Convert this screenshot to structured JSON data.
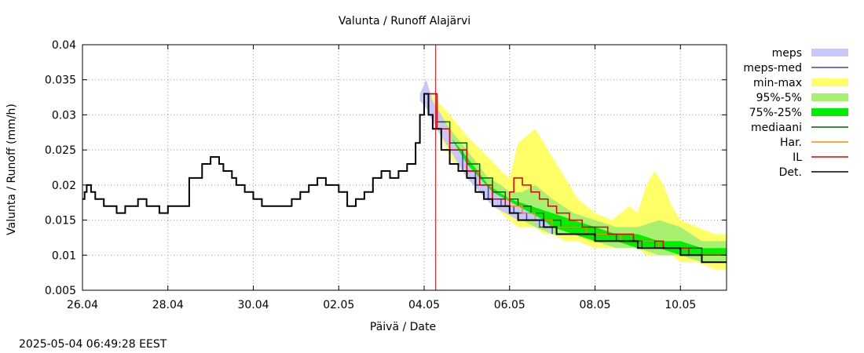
{
  "chart_data": {
    "type": "line",
    "title": "Valunta / Runoff  Alajärvi",
    "xlabel": "Päivä / Date",
    "ylabel": "Valunta / Runoff (mm/h)",
    "timestamp": "2025-05-04 06:49:28 EEST",
    "x_unit": "days since 26.04",
    "xlim": [
      0,
      15.08
    ],
    "ylim": [
      0.005,
      0.04
    ],
    "grid": true,
    "legend_position": "top-right outside",
    "x_ticks": [
      {
        "value": 0,
        "label": "26.04"
      },
      {
        "value": 2,
        "label": "28.04"
      },
      {
        "value": 4,
        "label": "30.04"
      },
      {
        "value": 6,
        "label": "02.05"
      },
      {
        "value": 8,
        "label": "04.05"
      },
      {
        "value": 10,
        "label": "06.05"
      },
      {
        "value": 12,
        "label": "08.05"
      },
      {
        "value": 14,
        "label": "10.05"
      }
    ],
    "y_ticks": [
      {
        "value": 0.005,
        "label": "0.005"
      },
      {
        "value": 0.01,
        "label": "0.01"
      },
      {
        "value": 0.015,
        "label": "0.015"
      },
      {
        "value": 0.02,
        "label": "0.02"
      },
      {
        "value": 0.025,
        "label": "0.025"
      },
      {
        "value": 0.03,
        "label": "0.03"
      },
      {
        "value": 0.035,
        "label": "0.035"
      },
      {
        "value": 0.04,
        "label": "0.04"
      }
    ],
    "forecast_start": 8.27,
    "legend": [
      {
        "label": "meps",
        "kind": "band",
        "color": "#c8c8f8"
      },
      {
        "label": "meps-med",
        "kind": "line",
        "color": "#4040c0"
      },
      {
        "label": "min-max",
        "kind": "band",
        "color": "#ffff66"
      },
      {
        "label": "95%-5%",
        "kind": "band",
        "color": "#a8f070"
      },
      {
        "label": "75%-25%",
        "kind": "band",
        "color": "#00ee00"
      },
      {
        "label": "mediaani",
        "kind": "line",
        "color": "#006400"
      },
      {
        "label": "Har.",
        "kind": "line",
        "color": "#ff8c00"
      },
      {
        "label": "IL",
        "kind": "line",
        "color": "#dd0000"
      },
      {
        "label": "Det.",
        "kind": "line",
        "color": "#000000"
      }
    ],
    "series": [
      {
        "name": "min-max",
        "kind": "band",
        "color": "#ffff66",
        "x": [
          8.0,
          8.3,
          8.6,
          9.0,
          9.5,
          9.8,
          10.0,
          10.2,
          10.4,
          10.6,
          10.8,
          11.0,
          11.3,
          11.6,
          12.0,
          12.4,
          12.8,
          13.0,
          13.2,
          13.4,
          13.6,
          13.8,
          14.0,
          14.4,
          14.8,
          15.08
        ],
        "lower": [
          0.033,
          0.028,
          0.024,
          0.021,
          0.018,
          0.016,
          0.015,
          0.014,
          0.014,
          0.014,
          0.013,
          0.013,
          0.012,
          0.012,
          0.011,
          0.011,
          0.011,
          0.011,
          0.01,
          0.01,
          0.01,
          0.01,
          0.009,
          0.009,
          0.008,
          0.008
        ],
        "upper": [
          0.034,
          0.032,
          0.03,
          0.027,
          0.024,
          0.022,
          0.021,
          0.026,
          0.027,
          0.028,
          0.026,
          0.024,
          0.021,
          0.018,
          0.016,
          0.015,
          0.017,
          0.016,
          0.02,
          0.022,
          0.02,
          0.017,
          0.015,
          0.014,
          0.013,
          0.013
        ]
      },
      {
        "name": "95%-5%",
        "kind": "band",
        "color": "#a8f070",
        "x": [
          8.0,
          8.3,
          8.6,
          9.0,
          9.5,
          9.8,
          10.0,
          10.3,
          10.6,
          11.0,
          11.5,
          12.0,
          12.5,
          13.0,
          13.5,
          14.0,
          14.5,
          15.08
        ],
        "lower": [
          0.033,
          0.028,
          0.025,
          0.022,
          0.018,
          0.017,
          0.016,
          0.015,
          0.014,
          0.013,
          0.013,
          0.012,
          0.011,
          0.011,
          0.01,
          0.01,
          0.009,
          0.009
        ],
        "upper": [
          0.033,
          0.031,
          0.028,
          0.025,
          0.021,
          0.02,
          0.019,
          0.019,
          0.02,
          0.018,
          0.016,
          0.015,
          0.014,
          0.014,
          0.015,
          0.014,
          0.012,
          0.012
        ]
      },
      {
        "name": "75%-25%",
        "kind": "band",
        "color": "#00ee00",
        "x": [
          8.0,
          8.3,
          8.6,
          9.0,
          9.5,
          10.0,
          10.5,
          11.0,
          11.5,
          12.0,
          12.5,
          13.0,
          13.5,
          14.0,
          14.5,
          15.08
        ],
        "lower": [
          0.033,
          0.029,
          0.026,
          0.023,
          0.019,
          0.017,
          0.015,
          0.014,
          0.013,
          0.012,
          0.012,
          0.011,
          0.011,
          0.01,
          0.01,
          0.01
        ],
        "upper": [
          0.033,
          0.03,
          0.027,
          0.024,
          0.02,
          0.018,
          0.017,
          0.016,
          0.015,
          0.014,
          0.013,
          0.013,
          0.012,
          0.012,
          0.011,
          0.011
        ]
      },
      {
        "name": "meps",
        "kind": "band",
        "color": "#c8c8f8",
        "x": [
          7.9,
          8.05,
          8.2,
          8.4,
          8.7,
          9.0,
          9.3,
          9.6,
          9.9,
          10.2,
          10.5,
          10.8,
          11.0
        ],
        "lower": [
          0.032,
          0.031,
          0.029,
          0.027,
          0.024,
          0.021,
          0.019,
          0.017,
          0.016,
          0.015,
          0.015,
          0.014,
          0.013
        ],
        "upper": [
          0.033,
          0.035,
          0.032,
          0.03,
          0.026,
          0.023,
          0.021,
          0.019,
          0.018,
          0.017,
          0.016,
          0.015,
          0.014
        ]
      },
      {
        "name": "meps-med",
        "kind": "line",
        "color": "#4040c0",
        "step": true,
        "x": [
          8.0,
          8.3,
          8.6,
          8.9,
          9.2,
          9.5,
          9.8,
          10.1,
          10.4,
          10.7,
          11.0
        ],
        "y": [
          0.033,
          0.028,
          0.025,
          0.022,
          0.02,
          0.018,
          0.017,
          0.016,
          0.015,
          0.014,
          0.013
        ]
      },
      {
        "name": "mediaani",
        "kind": "line",
        "color": "#006400",
        "step": true,
        "x": [
          8.0,
          8.3,
          8.6,
          9.0,
          9.3,
          9.6,
          9.9,
          10.2,
          10.5,
          10.8,
          11.2,
          11.6,
          12.0,
          12.5,
          13.0,
          13.5,
          14.0,
          14.5,
          15.08
        ],
        "y": [
          0.033,
          0.029,
          0.026,
          0.023,
          0.021,
          0.019,
          0.018,
          0.017,
          0.016,
          0.015,
          0.014,
          0.014,
          0.013,
          0.012,
          0.012,
          0.011,
          0.011,
          0.01,
          0.01
        ]
      },
      {
        "name": "Har.",
        "kind": "line",
        "color": "#ff8c00",
        "step": true,
        "x": [
          8.0,
          8.3,
          8.6,
          9.0,
          9.3,
          9.6,
          10.0,
          10.3,
          10.6,
          11.0,
          11.4,
          11.8,
          12.2,
          12.6,
          13.0,
          13.5,
          14.0,
          14.5,
          15.08
        ],
        "y": [
          0.033,
          0.028,
          0.025,
          0.022,
          0.02,
          0.018,
          0.017,
          0.016,
          0.015,
          0.014,
          0.014,
          0.013,
          0.013,
          0.012,
          0.012,
          0.011,
          0.01,
          0.01,
          0.01
        ]
      },
      {
        "name": "IL",
        "kind": "line",
        "color": "#dd0000",
        "step": true,
        "x": [
          8.0,
          8.3,
          8.6,
          9.0,
          9.3,
          9.6,
          9.9,
          10.0,
          10.1,
          10.3,
          10.5,
          10.7,
          10.9,
          11.1,
          11.4,
          11.7,
          12.0,
          12.3,
          12.6,
          12.9,
          13.1,
          13.4,
          13.6,
          13.9,
          14.2,
          14.6,
          15.08
        ],
        "y": [
          0.033,
          0.028,
          0.025,
          0.022,
          0.02,
          0.018,
          0.017,
          0.019,
          0.021,
          0.02,
          0.019,
          0.018,
          0.017,
          0.016,
          0.015,
          0.014,
          0.014,
          0.013,
          0.013,
          0.012,
          0.011,
          0.012,
          0.011,
          0.011,
          0.01,
          0.01,
          0.01
        ]
      },
      {
        "name": "Det.",
        "kind": "line",
        "color": "#000000",
        "step": true,
        "x": [
          0.0,
          0.05,
          0.1,
          0.2,
          0.3,
          0.5,
          0.8,
          1.0,
          1.3,
          1.5,
          1.8,
          2.0,
          2.5,
          2.8,
          3.0,
          3.2,
          3.3,
          3.5,
          3.6,
          3.8,
          4.0,
          4.2,
          4.4,
          4.7,
          4.9,
          5.1,
          5.3,
          5.5,
          5.7,
          5.8,
          6.0,
          6.2,
          6.4,
          6.6,
          6.8,
          7.0,
          7.2,
          7.4,
          7.6,
          7.8,
          7.9,
          8.0,
          8.1,
          8.2,
          8.4,
          8.6,
          8.8,
          9.0,
          9.2,
          9.4,
          9.6,
          9.8,
          10.0,
          10.2,
          10.5,
          10.8,
          11.1,
          11.5,
          12.0,
          12.5,
          13.0,
          13.5,
          14.0,
          14.5,
          15.08
        ],
        "y": [
          0.018,
          0.019,
          0.02,
          0.019,
          0.018,
          0.017,
          0.016,
          0.017,
          0.018,
          0.017,
          0.016,
          0.017,
          0.021,
          0.023,
          0.024,
          0.023,
          0.022,
          0.021,
          0.02,
          0.019,
          0.018,
          0.017,
          0.017,
          0.017,
          0.018,
          0.019,
          0.02,
          0.021,
          0.02,
          0.02,
          0.019,
          0.017,
          0.018,
          0.019,
          0.021,
          0.022,
          0.021,
          0.022,
          0.023,
          0.026,
          0.03,
          0.033,
          0.03,
          0.028,
          0.025,
          0.023,
          0.022,
          0.021,
          0.019,
          0.018,
          0.017,
          0.017,
          0.016,
          0.015,
          0.015,
          0.014,
          0.013,
          0.013,
          0.012,
          0.012,
          0.011,
          0.011,
          0.01,
          0.009,
          0.009
        ]
      }
    ]
  }
}
